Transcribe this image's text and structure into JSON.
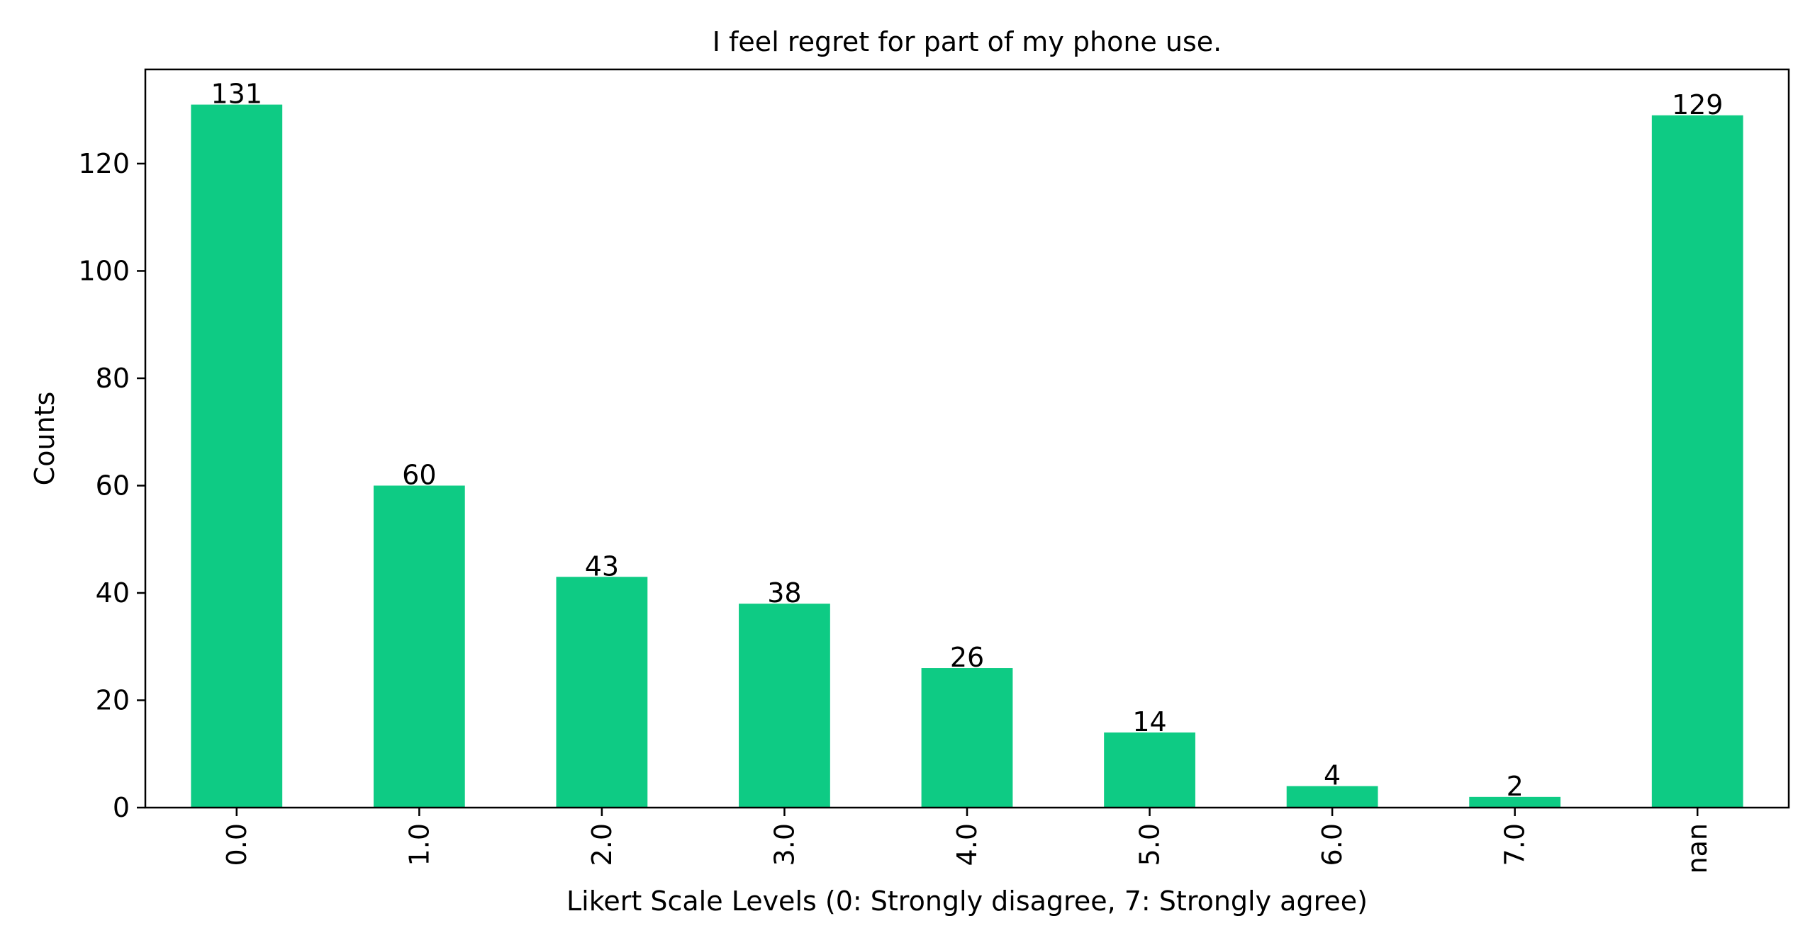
{
  "chart_data": {
    "type": "bar",
    "title": "I feel regret for part of my phone use.",
    "xlabel": "Likert Scale Levels (0: Strongly disagree, 7: Strongly agree)",
    "ylabel": "Counts",
    "categories": [
      "0.0",
      "1.0",
      "2.0",
      "3.0",
      "4.0",
      "5.0",
      "6.0",
      "7.0",
      "nan"
    ],
    "values": [
      131,
      60,
      43,
      38,
      26,
      14,
      4,
      2,
      129
    ],
    "data_labels": [
      "131",
      "60",
      "43",
      "38",
      "26",
      "14",
      "4",
      "2",
      "129"
    ],
    "ylim": [
      0,
      137.55
    ],
    "yticks": [
      0,
      20,
      40,
      60,
      80,
      100,
      120
    ],
    "ytick_labels": [
      "0",
      "20",
      "40",
      "60",
      "80",
      "100",
      "120"
    ],
    "grid": false,
    "legend": "none",
    "tick_label_rotation": "vertical",
    "bar_color": "#0ECB84"
  }
}
